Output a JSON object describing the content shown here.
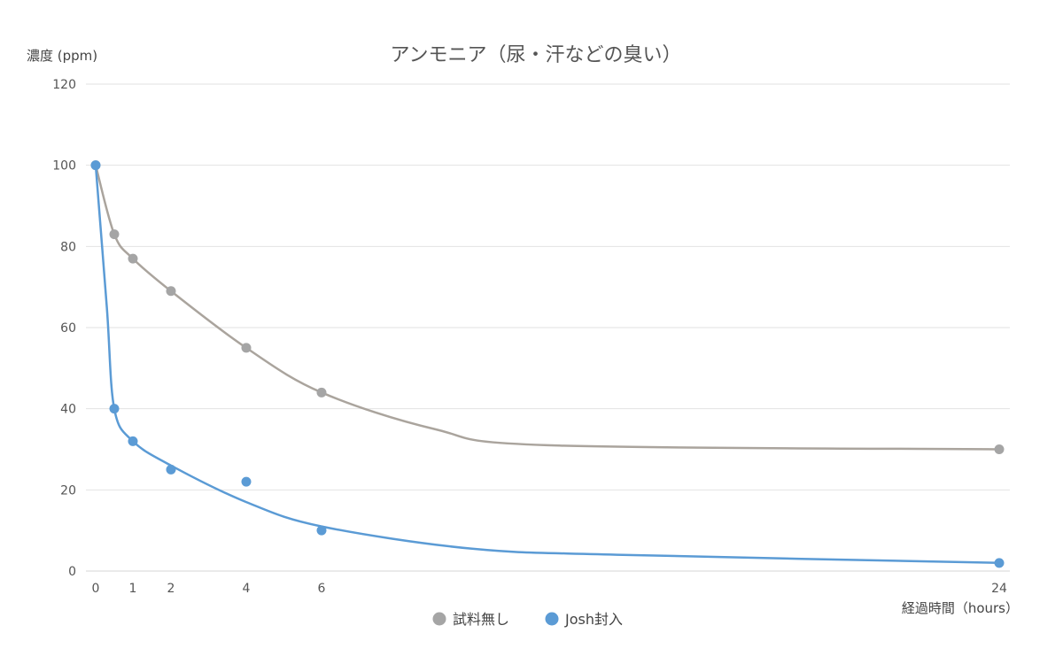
{
  "chart_data": {
    "type": "scatter",
    "title": "アンモニア（尿・汗などの臭い）",
    "ylabel": "濃度 (ppm)",
    "xlabel": "経過時間（hours）",
    "ylim": [
      0,
      120
    ],
    "y_ticks": [
      "0",
      "20",
      "40",
      "60",
      "80",
      "100",
      "120"
    ],
    "x_ticks": [
      "0",
      "1",
      "2",
      "4",
      "6",
      "24"
    ],
    "grid": "horizontal",
    "legend_position": "bottom",
    "series": [
      {
        "name": "試料無し",
        "color": "#a5a5a5",
        "line_color": "#aaa49d",
        "points": [
          {
            "x": 0,
            "y": 100
          },
          {
            "x": 0.5,
            "y": 83
          },
          {
            "x": 1,
            "y": 77
          },
          {
            "x": 2,
            "y": 69
          },
          {
            "x": 4,
            "y": 55
          },
          {
            "x": 6,
            "y": 44
          },
          {
            "x": 24,
            "y": 30
          }
        ],
        "trend": [
          {
            "x": 0,
            "y": 100
          },
          {
            "x": 0.5,
            "y": 83
          },
          {
            "x": 1,
            "y": 77
          },
          {
            "x": 2,
            "y": 69
          },
          {
            "x": 4,
            "y": 55
          },
          {
            "x": 6,
            "y": 44
          },
          {
            "x": 9,
            "y": 35
          },
          {
            "x": 12,
            "y": 31
          },
          {
            "x": 24,
            "y": 30
          }
        ]
      },
      {
        "name": "Josh封入",
        "color": "#5b9bd5",
        "line_color": "#5b9bd5",
        "points": [
          {
            "x": 0,
            "y": 100
          },
          {
            "x": 0.5,
            "y": 40
          },
          {
            "x": 1,
            "y": 32
          },
          {
            "x": 2,
            "y": 25
          },
          {
            "x": 4,
            "y": 22
          },
          {
            "x": 6,
            "y": 10
          },
          {
            "x": 24,
            "y": 2
          }
        ],
        "trend": [
          {
            "x": 0,
            "y": 100
          },
          {
            "x": 0.3,
            "y": 65
          },
          {
            "x": 0.5,
            "y": 40
          },
          {
            "x": 1,
            "y": 32
          },
          {
            "x": 2,
            "y": 26
          },
          {
            "x": 4,
            "y": 17
          },
          {
            "x": 6,
            "y": 11
          },
          {
            "x": 10,
            "y": 5.5
          },
          {
            "x": 14,
            "y": 4
          },
          {
            "x": 24,
            "y": 2
          }
        ]
      }
    ]
  }
}
